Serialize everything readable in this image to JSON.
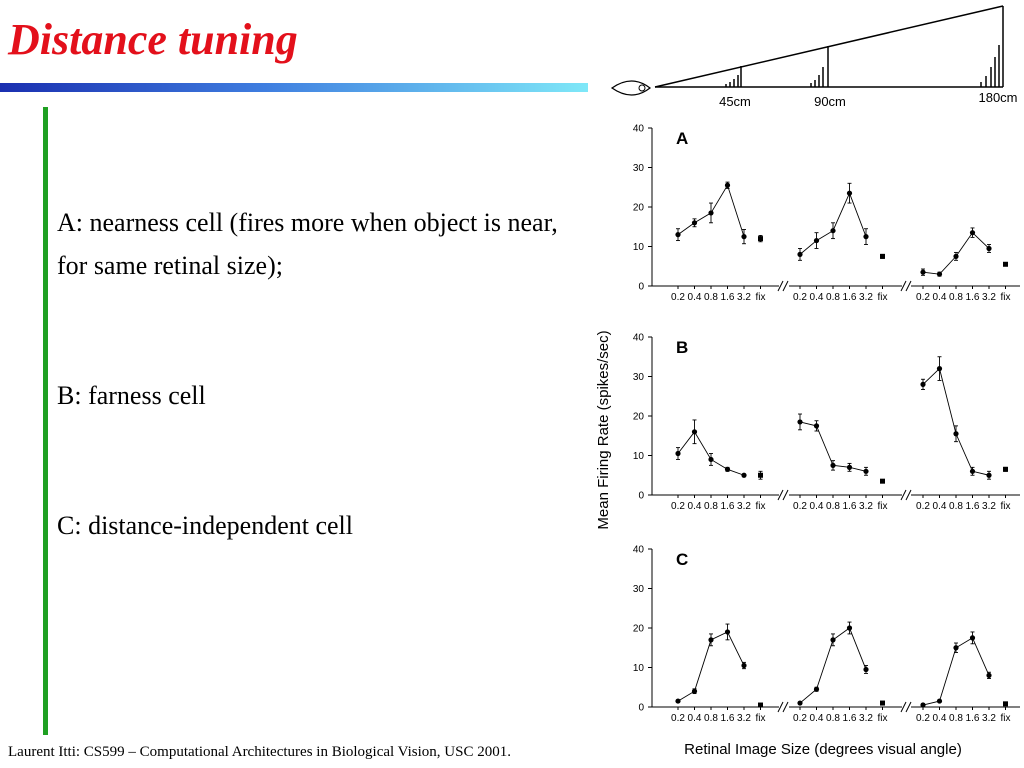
{
  "title": "Distance tuning",
  "points": [
    "A: nearness cell (fires more when object is near, for same retinal size);",
    "B: farness cell",
    "C: distance-independent cell"
  ],
  "footer": "Laurent Itti: CS599 – Computational Architectures in Biological Vision, USC 2001.",
  "distances": [
    "45cm",
    "90cm",
    "180cm"
  ],
  "chart_data": {
    "type": "line",
    "ylabel": "Mean Firing Rate (spikes/sec)",
    "xlabel": "Retinal Image Size (degrees visual angle)",
    "ylim": [
      0,
      40
    ],
    "yticks": [
      0,
      10,
      20,
      30,
      40
    ],
    "categories": [
      "0.2",
      "0.4",
      "0.8",
      "1.6",
      "3.2",
      "fix"
    ],
    "panels": [
      {
        "label": "A",
        "cells": [
          {
            "values": [
              13,
              16,
              18.5,
              25.5,
              12.5,
              12
            ],
            "errors": [
              1.5,
              1,
              2.5,
              0.8,
              1.8,
              0.8
            ]
          },
          {
            "values": [
              8,
              11.5,
              14,
              23.5,
              12.5,
              7.5
            ],
            "errors": [
              1.5,
              2,
              2,
              2.5,
              2,
              0.5
            ]
          },
          {
            "values": [
              3.5,
              3,
              7.5,
              13.5,
              9.5,
              5.5
            ],
            "errors": [
              0.8,
              0.5,
              1,
              1.2,
              1,
              0.3
            ]
          }
        ]
      },
      {
        "label": "B",
        "cells": [
          {
            "values": [
              10.5,
              16,
              9,
              6.5,
              5,
              5
            ],
            "errors": [
              1.5,
              3,
              1.5,
              0.5,
              0.3,
              1
            ]
          },
          {
            "values": [
              18.5,
              17.5,
              7.5,
              7,
              6,
              3.5
            ],
            "errors": [
              2,
              1.3,
              1.2,
              1,
              1,
              0.3
            ]
          },
          {
            "values": [
              28,
              32,
              15.5,
              6,
              5,
              6.5
            ],
            "errors": [
              1.3,
              3,
              2,
              1,
              1,
              0.5
            ]
          }
        ]
      },
      {
        "label": "C",
        "cells": [
          {
            "values": [
              1.5,
              4,
              17,
              19,
              10.5,
              0.5
            ],
            "errors": [
              0.3,
              0.6,
              1.5,
              2,
              0.8,
              0.3
            ]
          },
          {
            "values": [
              1,
              4.5,
              17,
              20,
              9.5,
              1
            ],
            "errors": [
              0.3,
              0.5,
              1.5,
              1.5,
              1,
              0.3
            ]
          },
          {
            "values": [
              0.5,
              1.5,
              15,
              17.5,
              8,
              0.8
            ],
            "errors": [
              0.3,
              0.3,
              1.2,
              1.5,
              0.8,
              0.3
            ]
          }
        ]
      }
    ]
  }
}
